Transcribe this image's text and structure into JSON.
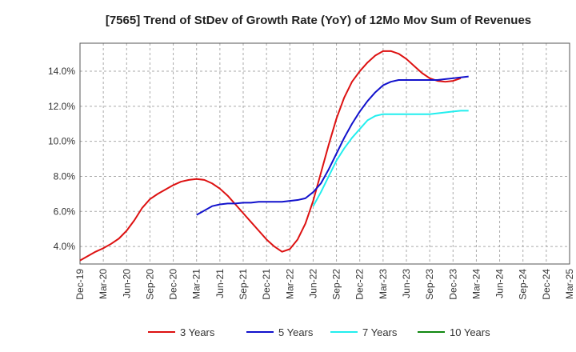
{
  "chart_data": {
    "type": "line",
    "title": "[7565]  Trend of StDev of Growth Rate (YoY) of 12Mo Mov Sum of Revenues",
    "xlabel": "",
    "ylabel": "",
    "ylim": [
      3.0,
      15.6
    ],
    "ytick_values": [
      4.0,
      6.0,
      8.0,
      10.0,
      12.0,
      14.0
    ],
    "ytick_labels": [
      "4.0%",
      "6.0%",
      "8.0%",
      "10.0%",
      "12.0%",
      "14.0%"
    ],
    "xlim_months": [
      0,
      63
    ],
    "xtick_labels": [
      "Dec-19",
      "Mar-20",
      "Jun-20",
      "Sep-20",
      "Dec-20",
      "Mar-21",
      "Jun-21",
      "Sep-21",
      "Dec-21",
      "Mar-22",
      "Jun-22",
      "Sep-22",
      "Dec-22",
      "Mar-23",
      "Jun-23",
      "Sep-23",
      "Dec-23",
      "Mar-24",
      "Jun-24",
      "Sep-24",
      "Dec-24",
      "Mar-25"
    ],
    "grid": true,
    "legend_position": "bottom",
    "series": [
      {
        "name": "3 Years",
        "color": "#dd1111",
        "x": [
          0,
          1,
          2,
          3,
          4,
          5,
          6,
          7,
          8,
          9,
          10,
          11,
          12,
          13,
          14,
          15,
          16,
          17,
          18,
          19,
          20,
          21,
          22,
          23,
          24,
          25,
          26,
          27,
          28,
          29,
          30,
          31,
          32,
          33,
          34,
          35,
          36,
          37,
          38,
          39,
          40,
          41,
          42,
          43,
          44,
          45,
          46,
          47,
          48,
          49,
          50,
          51,
          52,
          53,
          54,
          55,
          56,
          57,
          58,
          59,
          60,
          61,
          62,
          63
        ],
        "values": [
          3.2,
          3.45,
          3.7,
          3.9,
          4.15,
          4.45,
          4.9,
          5.5,
          6.2,
          6.7,
          7.0,
          7.25,
          7.5,
          7.7,
          7.8,
          7.85,
          7.8,
          7.6,
          7.3,
          6.9,
          6.4,
          5.9,
          5.4,
          4.9,
          4.4,
          4.0,
          3.7,
          3.85,
          4.4,
          5.3,
          6.6,
          8.2,
          9.8,
          11.3,
          12.5,
          13.4,
          14.0,
          14.5,
          14.9,
          15.15,
          15.15,
          15.0,
          14.7,
          14.3,
          13.9,
          13.6,
          13.45,
          13.4,
          13.45,
          13.6,
          null,
          null,
          null,
          null,
          null,
          null,
          null,
          null,
          null,
          null,
          null,
          null,
          null,
          null
        ]
      },
      {
        "name": "5 Years",
        "color": "#1111cc",
        "x": [
          15,
          16,
          17,
          18,
          19,
          20,
          21,
          22,
          23,
          24,
          25,
          26,
          27,
          28,
          29,
          30,
          31,
          32,
          33,
          34,
          35,
          36,
          37,
          38,
          39,
          40,
          41,
          42,
          43,
          44,
          45,
          46,
          47,
          48,
          49,
          50
        ],
        "values": [
          5.8,
          6.05,
          6.3,
          6.4,
          6.45,
          6.45,
          6.5,
          6.5,
          6.55,
          6.55,
          6.55,
          6.55,
          6.6,
          6.65,
          6.75,
          7.1,
          7.6,
          8.4,
          9.3,
          10.2,
          11.0,
          11.7,
          12.3,
          12.8,
          13.2,
          13.4,
          13.5,
          13.5,
          13.5,
          13.5,
          13.5,
          13.5,
          13.55,
          13.6,
          13.65,
          13.7
        ]
      },
      {
        "name": "7 Years",
        "color": "#22eeee",
        "x": [
          30,
          31,
          32,
          33,
          34,
          35,
          36,
          37,
          38,
          39,
          40,
          41,
          42,
          43,
          44,
          45,
          46,
          47,
          48,
          49,
          50
        ],
        "values": [
          6.3,
          7.1,
          8.0,
          8.9,
          9.6,
          10.2,
          10.7,
          11.2,
          11.45,
          11.55,
          11.55,
          11.55,
          11.55,
          11.55,
          11.55,
          11.55,
          11.6,
          11.65,
          11.7,
          11.75,
          11.75
        ]
      },
      {
        "name": "10 Years",
        "color": "#118811",
        "x": [],
        "values": []
      }
    ]
  }
}
